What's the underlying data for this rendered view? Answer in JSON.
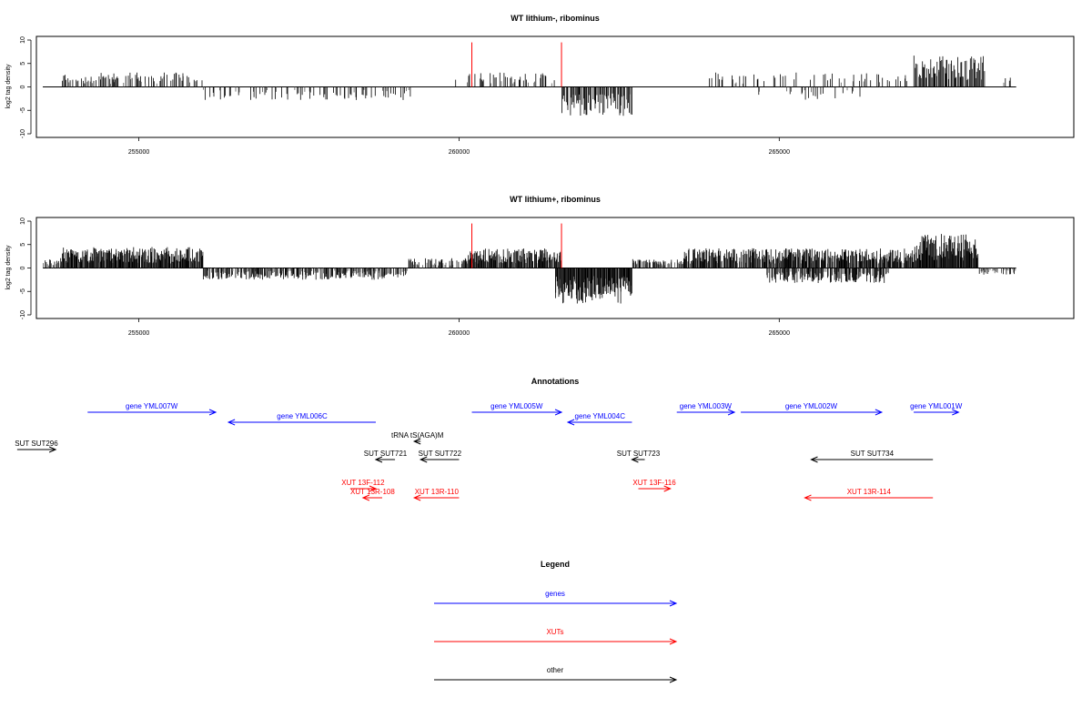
{
  "chart_data": [
    {
      "type": "bar",
      "title": "WT lithium-, ribominus",
      "ylabel": "log2 tag density",
      "xlim": [
        253400,
        269600
      ],
      "ylim": [
        -10,
        10
      ],
      "yticks": [
        10,
        5,
        0,
        -5,
        -10
      ],
      "xticks": [
        255000,
        260000,
        265000
      ],
      "xtick_labels": [
        "255000",
        "260000",
        "265000"
      ],
      "markers": [
        260200,
        261600
      ],
      "density": "sparse"
    },
    {
      "type": "bar",
      "title": "WT lithium+, ribominus",
      "ylabel": "log2 tag density",
      "xlim": [
        253400,
        269600
      ],
      "ylim": [
        -10,
        10
      ],
      "yticks": [
        10,
        5,
        0,
        -5,
        -10
      ],
      "xticks": [
        255000,
        260000,
        265000
      ],
      "xtick_labels": [
        "255000",
        "260000",
        "265000"
      ],
      "markers": [
        260200,
        261600
      ],
      "density": "dense"
    }
  ],
  "annotations": {
    "title": "Annotations",
    "colors": {
      "gene": "#0000ff",
      "xut": "#ff0000",
      "other": "#000000"
    },
    "items": [
      {
        "label": "gene YML007W",
        "type": "gene",
        "start": 254200,
        "end": 256200,
        "strand": "+",
        "row": 0
      },
      {
        "label": "gene YML006C",
        "type": "gene",
        "start": 256400,
        "end": 258700,
        "strand": "-",
        "row": 1
      },
      {
        "label": "gene YML005W",
        "type": "gene",
        "start": 260200,
        "end": 261600,
        "strand": "+",
        "row": 0
      },
      {
        "label": "gene YML004C",
        "type": "gene",
        "start": 261700,
        "end": 262700,
        "strand": "-",
        "row": 1
      },
      {
        "label": "gene YML003W",
        "type": "gene",
        "start": 263400,
        "end": 264300,
        "strand": "+",
        "row": 0
      },
      {
        "label": "gene YML002W",
        "type": "gene",
        "start": 264400,
        "end": 266600,
        "strand": "+",
        "row": 0
      },
      {
        "label": "gene YML001W",
        "type": "gene",
        "start": 267100,
        "end": 267800,
        "strand": "+",
        "row": 0
      },
      {
        "label": "tRNA tS(AGA)M",
        "type": "other",
        "start": 259300,
        "end": 259400,
        "strand": "-",
        "row": 2
      },
      {
        "label": "SUT SUT296",
        "type": "other",
        "start": 253100,
        "end": 253700,
        "strand": "+",
        "row": 3
      },
      {
        "label": "SUT SUT721",
        "type": "other",
        "start": 258700,
        "end": 259000,
        "strand": "-",
        "row": 4
      },
      {
        "label": "SUT SUT722",
        "type": "other",
        "start": 259400,
        "end": 260000,
        "strand": "-",
        "row": 4
      },
      {
        "label": "SUT SUT723",
        "type": "other",
        "start": 262700,
        "end": 262900,
        "strand": "-",
        "row": 4
      },
      {
        "label": "SUT SUT734",
        "type": "other",
        "start": 265500,
        "end": 267400,
        "strand": "-",
        "row": 4
      },
      {
        "label": "XUT 13F-112",
        "type": "xut",
        "start": 258300,
        "end": 258700,
        "strand": "+",
        "row": 5
      },
      {
        "label": "XUT 13R-108",
        "type": "xut",
        "start": 258500,
        "end": 258800,
        "strand": "-",
        "row": 6
      },
      {
        "label": "XUT 13R-110",
        "type": "xut",
        "start": 259300,
        "end": 260000,
        "strand": "-",
        "row": 6
      },
      {
        "label": "XUT 13F-116",
        "type": "xut",
        "start": 262800,
        "end": 263300,
        "strand": "+",
        "row": 5
      },
      {
        "label": "XUT 13R-114",
        "type": "xut",
        "start": 265400,
        "end": 267400,
        "strand": "-",
        "row": 6
      }
    ]
  },
  "legend": {
    "title": "Legend",
    "items": [
      {
        "label": "genes",
        "color": "#0000ff"
      },
      {
        "label": "XUTs",
        "color": "#ff0000"
      },
      {
        "label": "other",
        "color": "#000000"
      }
    ]
  }
}
